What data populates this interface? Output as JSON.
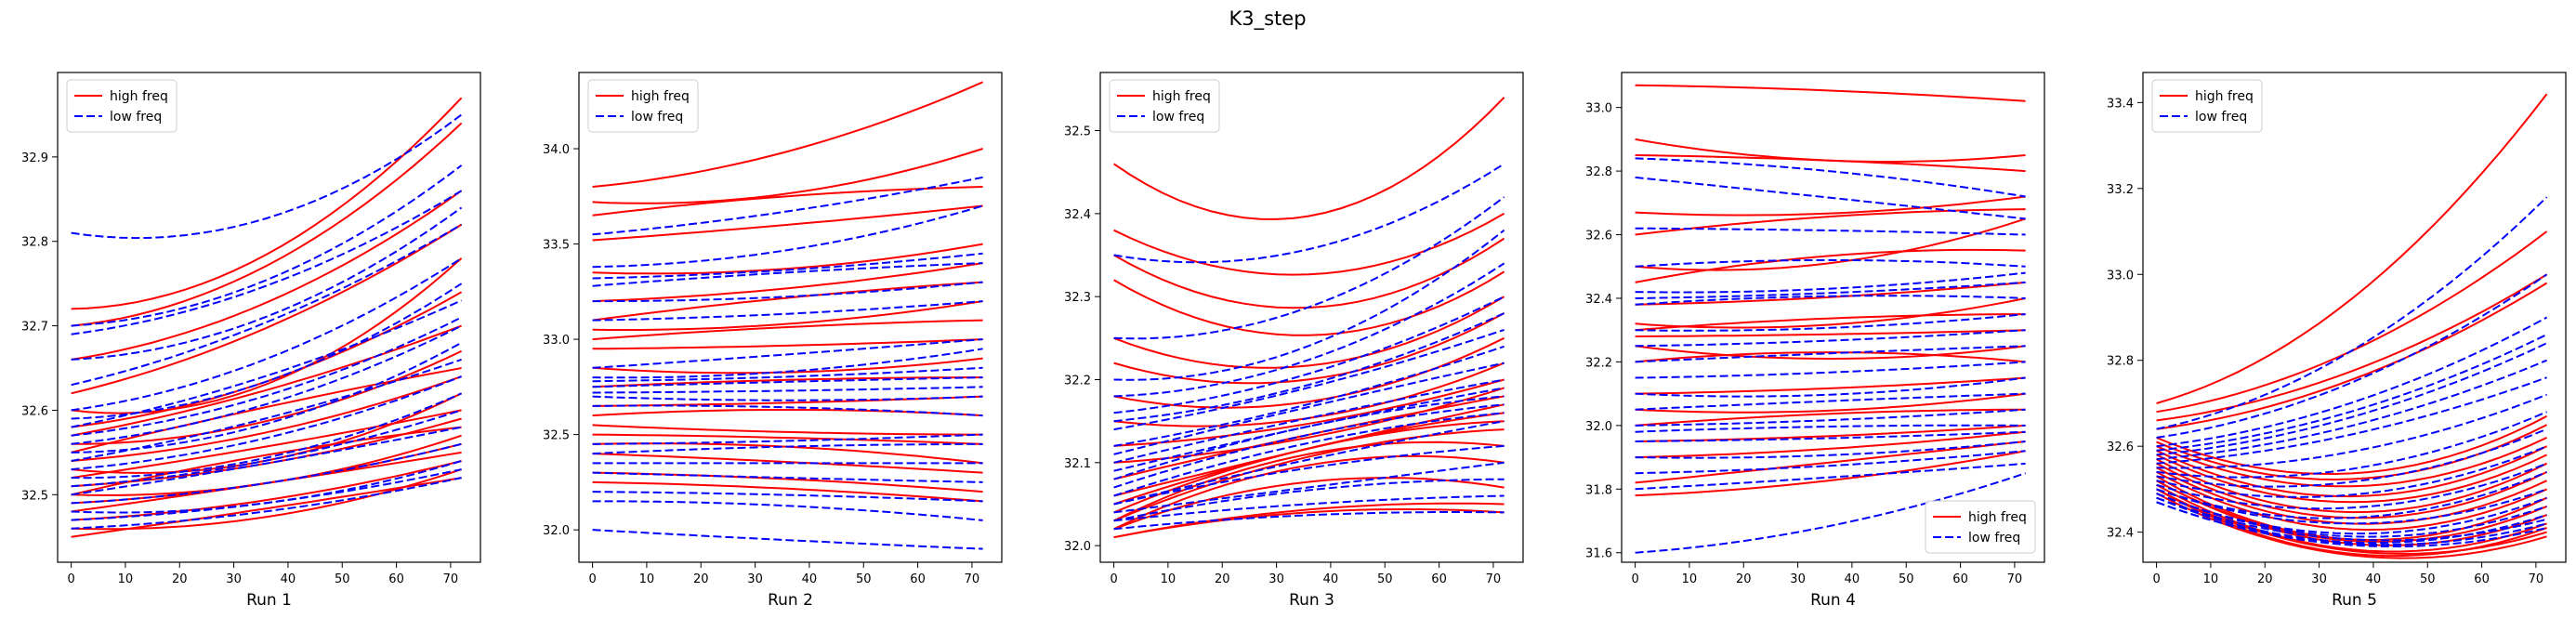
{
  "suptitle": "K3_step",
  "legend_labels": {
    "high": "high freq",
    "low": "low freq"
  },
  "colors": {
    "high": "#ff0000",
    "low": "#0000ff",
    "axis": "#000000"
  },
  "chart_data": [
    {
      "type": "line",
      "title": "",
      "xlabel": "Run 1",
      "ylabel": "",
      "xlim": [
        -2.5,
        75.5
      ],
      "ylim": [
        32.42,
        33.0
      ],
      "xticks": [
        0,
        10,
        20,
        30,
        40,
        50,
        60,
        70
      ],
      "yticks": [
        32.5,
        32.6,
        32.7,
        32.8,
        32.9
      ],
      "legend_position": "upper left",
      "series": [
        {
          "name": "high freq",
          "style": "solid",
          "color": "#ff0000",
          "starts": [
            32.72,
            32.7,
            32.66,
            32.62,
            32.6,
            32.58,
            32.57,
            32.56,
            32.55,
            32.54,
            32.53,
            32.52,
            32.51,
            32.5,
            32.5,
            32.49,
            32.48,
            32.47,
            32.46,
            32.45
          ],
          "ends": [
            32.97,
            32.94,
            32.86,
            32.82,
            32.78,
            32.74,
            32.7,
            32.67,
            32.65,
            32.64,
            32.62,
            32.6,
            32.59,
            32.58,
            32.57,
            32.56,
            32.55,
            32.54,
            32.53,
            32.52
          ],
          "dips": [
            -0.02,
            -0.01,
            0.0,
            0.01,
            -0.03,
            0.0,
            0.01,
            -0.01,
            0.02,
            0.0,
            -0.02,
            0.01,
            0.0,
            0.02,
            -0.01,
            0.0,
            0.01,
            0.0,
            -0.01,
            0.01
          ]
        },
        {
          "name": "low freq",
          "style": "dashed",
          "color": "#0000ff",
          "starts": [
            32.81,
            32.7,
            32.69,
            32.66,
            32.63,
            32.6,
            32.59,
            32.58,
            32.57,
            32.56,
            32.55,
            32.54,
            32.53,
            32.52,
            32.51,
            32.5,
            32.49,
            32.48,
            32.47,
            32.46
          ],
          "ends": [
            32.95,
            32.89,
            32.86,
            32.84,
            32.82,
            32.78,
            32.75,
            32.73,
            32.71,
            32.7,
            32.68,
            32.66,
            32.64,
            32.62,
            32.6,
            32.58,
            32.56,
            32.54,
            32.53,
            32.52
          ],
          "dips": [
            -0.03,
            -0.01,
            0.0,
            -0.01,
            0.01,
            0.0,
            -0.01,
            0.01,
            0.0,
            0.0,
            -0.01,
            0.01,
            0.0,
            -0.01,
            0.0,
            0.01,
            0.0,
            -0.01,
            0.0,
            0.0
          ]
        }
      ]
    },
    {
      "type": "line",
      "title": "",
      "xlabel": "Run 2",
      "ylabel": "",
      "xlim": [
        -2.5,
        75.5
      ],
      "ylim": [
        31.83,
        34.4
      ],
      "xticks": [
        0,
        10,
        20,
        30,
        40,
        50,
        60,
        70
      ],
      "yticks": [
        32.0,
        32.5,
        33.0,
        33.5,
        34.0
      ],
      "legend_position": "upper left",
      "series": [
        {
          "name": "high freq",
          "style": "solid",
          "color": "#ff0000",
          "starts": [
            33.8,
            33.72,
            33.65,
            33.52,
            33.35,
            33.2,
            33.1,
            33.05,
            33.0,
            32.95,
            32.85,
            32.75,
            32.65,
            32.6,
            32.55,
            32.5,
            32.45,
            32.4,
            32.3,
            32.25
          ],
          "ends": [
            34.35,
            34.0,
            33.8,
            33.7,
            33.5,
            33.4,
            33.3,
            33.2,
            33.1,
            33.0,
            32.9,
            32.8,
            32.7,
            32.6,
            32.5,
            32.45,
            32.35,
            32.3,
            32.2,
            32.15
          ],
          "dips": [
            0.0,
            -0.05,
            0.05,
            0.02,
            -0.03,
            0.0,
            0.05,
            -0.02,
            0.03,
            0.0,
            -0.04,
            0.02,
            0.0,
            0.03,
            -0.02,
            0.0,
            0.02,
            -0.01,
            0.0,
            0.0
          ]
        },
        {
          "name": "low freq",
          "style": "dashed",
          "color": "#0000ff",
          "starts": [
            33.55,
            33.38,
            33.32,
            33.28,
            33.2,
            33.1,
            32.85,
            32.8,
            32.78,
            32.75,
            32.72,
            32.7,
            32.65,
            32.45,
            32.4,
            32.35,
            32.3,
            32.2,
            32.15,
            32.0
          ],
          "ends": [
            33.85,
            33.7,
            33.45,
            33.4,
            33.3,
            33.2,
            33.0,
            32.95,
            32.85,
            32.8,
            32.75,
            32.7,
            32.6,
            32.5,
            32.45,
            32.35,
            32.25,
            32.15,
            32.05,
            31.9
          ],
          "dips": [
            0.02,
            -0.02,
            0.0,
            0.03,
            -0.01,
            0.0,
            0.02,
            -0.02,
            0.0,
            0.01,
            0.0,
            -0.02,
            0.01,
            0.0,
            0.02,
            0.0,
            -0.01,
            0.0,
            0.01,
            -0.02
          ]
        }
      ]
    },
    {
      "type": "line",
      "title": "",
      "xlabel": "Run 3",
      "ylabel": "",
      "xlim": [
        -2.5,
        75.5
      ],
      "ylim": [
        31.98,
        32.57
      ],
      "xticks": [
        0,
        10,
        20,
        30,
        40,
        50,
        60,
        70
      ],
      "yticks": [
        32.0,
        32.1,
        32.2,
        32.3,
        32.4,
        32.5
      ],
      "legend_position": "upper left",
      "series": [
        {
          "name": "high freq",
          "style": "solid",
          "color": "#ff0000",
          "starts": [
            32.46,
            32.38,
            32.35,
            32.32,
            32.25,
            32.22,
            32.18,
            32.15,
            32.12,
            32.1,
            32.08,
            32.06,
            32.05,
            32.04,
            32.03,
            32.03,
            32.02,
            32.02,
            32.01,
            32.01
          ],
          "ends": [
            32.54,
            32.4,
            32.37,
            32.33,
            32.3,
            32.28,
            32.25,
            32.22,
            32.2,
            32.19,
            32.18,
            32.17,
            32.16,
            32.15,
            32.14,
            32.12,
            32.1,
            32.07,
            32.05,
            32.04
          ],
          "dips": [
            -0.09,
            -0.06,
            -0.07,
            -0.07,
            -0.05,
            -0.04,
            -0.03,
            -0.02,
            0.0,
            0.0,
            0.02,
            0.02,
            0.03,
            0.04,
            0.04,
            0.05,
            0.05,
            0.04,
            0.02,
            0.02
          ]
        },
        {
          "name": "low freq",
          "style": "dashed",
          "color": "#0000ff",
          "starts": [
            32.35,
            32.25,
            32.2,
            32.18,
            32.16,
            32.15,
            32.14,
            32.12,
            32.11,
            32.1,
            32.09,
            32.08,
            32.07,
            32.06,
            32.05,
            32.05,
            32.04,
            32.03,
            32.03,
            32.02
          ],
          "ends": [
            32.46,
            32.42,
            32.38,
            32.34,
            32.3,
            32.28,
            32.26,
            32.24,
            32.22,
            32.2,
            32.19,
            32.18,
            32.17,
            32.16,
            32.15,
            32.12,
            32.1,
            32.08,
            32.06,
            32.04
          ],
          "dips": [
            -0.03,
            -0.02,
            -0.02,
            -0.01,
            0.0,
            0.0,
            0.01,
            0.01,
            0.02,
            0.02,
            0.02,
            0.03,
            0.03,
            0.03,
            0.02,
            0.02,
            0.01,
            0.02,
            0.01,
            0.01
          ]
        }
      ]
    },
    {
      "type": "line",
      "title": "",
      "xlabel": "Run 4",
      "ylabel": "",
      "xlim": [
        -2.5,
        75.5
      ],
      "ylim": [
        31.57,
        33.11
      ],
      "xticks": [
        0,
        10,
        20,
        30,
        40,
        50,
        60,
        70
      ],
      "yticks": [
        31.6,
        31.8,
        32.0,
        32.2,
        32.4,
        32.6,
        32.8,
        33.0
      ],
      "legend_position": "lower right",
      "series": [
        {
          "name": "high freq",
          "style": "solid",
          "color": "#ff0000",
          "starts": [
            33.07,
            32.9,
            32.85,
            32.67,
            32.6,
            32.5,
            32.45,
            32.38,
            32.32,
            32.3,
            32.28,
            32.25,
            32.2,
            32.1,
            32.05,
            32.0,
            31.95,
            31.9,
            31.82,
            31.78
          ],
          "ends": [
            33.02,
            32.85,
            32.8,
            32.72,
            32.68,
            32.65,
            32.55,
            32.45,
            32.4,
            32.35,
            32.3,
            32.25,
            32.2,
            32.15,
            32.1,
            32.05,
            32.0,
            31.98,
            31.95,
            31.92
          ],
          "dips": [
            0.0,
            -0.05,
            0.0,
            -0.02,
            0.03,
            -0.04,
            0.05,
            0.0,
            -0.03,
            0.02,
            0.0,
            -0.04,
            0.03,
            0.0,
            -0.02,
            0.02,
            0.0,
            0.0,
            0.02,
            0.0
          ]
        },
        {
          "name": "low freq",
          "style": "dashed",
          "color": "#0000ff",
          "starts": [
            32.84,
            32.78,
            32.62,
            32.5,
            32.42,
            32.4,
            32.38,
            32.3,
            32.25,
            32.2,
            32.15,
            32.1,
            32.05,
            32.0,
            31.98,
            31.95,
            31.9,
            31.85,
            31.8,
            31.6
          ],
          "ends": [
            32.72,
            32.65,
            32.6,
            32.5,
            32.48,
            32.45,
            32.4,
            32.35,
            32.3,
            32.25,
            32.2,
            32.15,
            32.1,
            32.05,
            32.0,
            31.98,
            31.95,
            31.92,
            31.88,
            31.85
          ],
          "dips": [
            0.0,
            -0.02,
            0.0,
            0.02,
            -0.01,
            0.0,
            0.02,
            -0.01,
            0.0,
            0.01,
            0.0,
            -0.02,
            0.01,
            0.0,
            0.01,
            0.0,
            -0.01,
            0.0,
            0.01,
            0.0
          ]
        }
      ]
    },
    {
      "type": "line",
      "title": "",
      "xlabel": "Run 5",
      "ylabel": "",
      "xlim": [
        -2.5,
        75.5
      ],
      "ylim": [
        32.33,
        33.47
      ],
      "xticks": [
        0,
        10,
        20,
        30,
        40,
        50,
        60,
        70
      ],
      "yticks": [
        32.4,
        32.6,
        32.8,
        33.0,
        33.2,
        33.4
      ],
      "legend_position": "upper left",
      "series": [
        {
          "name": "high freq",
          "style": "solid",
          "color": "#ff0000",
          "starts": [
            32.7,
            32.68,
            32.66,
            32.64,
            32.62,
            32.61,
            32.6,
            32.59,
            32.58,
            32.57,
            32.56,
            32.55,
            32.54,
            32.53,
            32.52,
            32.52,
            32.51,
            32.5,
            32.5,
            32.49
          ],
          "ends": [
            33.42,
            33.1,
            33.0,
            32.98,
            32.67,
            32.65,
            32.62,
            32.6,
            32.58,
            32.56,
            32.54,
            32.52,
            32.5,
            32.48,
            32.46,
            32.44,
            32.42,
            32.41,
            32.4,
            32.39
          ],
          "dips": [
            0.0,
            0.0,
            0.0,
            0.0,
            -0.1,
            -0.1,
            -0.1,
            -0.11,
            -0.11,
            -0.12,
            -0.12,
            -0.12,
            -0.12,
            -0.13,
            -0.12,
            -0.12,
            -0.12,
            -0.12,
            -0.11,
            -0.11
          ]
        },
        {
          "name": "low freq",
          "style": "dashed",
          "color": "#0000ff",
          "starts": [
            32.64,
            32.62,
            32.6,
            32.59,
            32.58,
            32.57,
            32.56,
            32.55,
            32.54,
            32.53,
            32.52,
            32.51,
            32.5,
            32.5,
            32.49,
            32.49,
            32.48,
            32.48,
            32.47,
            32.47
          ],
          "ends": [
            33.18,
            33.0,
            32.9,
            32.86,
            32.84,
            32.8,
            32.76,
            32.72,
            32.68,
            32.64,
            32.6,
            32.56,
            32.54,
            32.5,
            32.48,
            32.46,
            32.44,
            32.43,
            32.42,
            32.41
          ],
          "dips": [
            0.0,
            0.0,
            0.0,
            0.0,
            0.0,
            0.0,
            0.0,
            -0.02,
            -0.04,
            -0.05,
            -0.06,
            -0.07,
            -0.08,
            -0.08,
            -0.09,
            -0.09,
            -0.09,
            -0.08,
            -0.08,
            -0.08
          ]
        }
      ]
    }
  ]
}
